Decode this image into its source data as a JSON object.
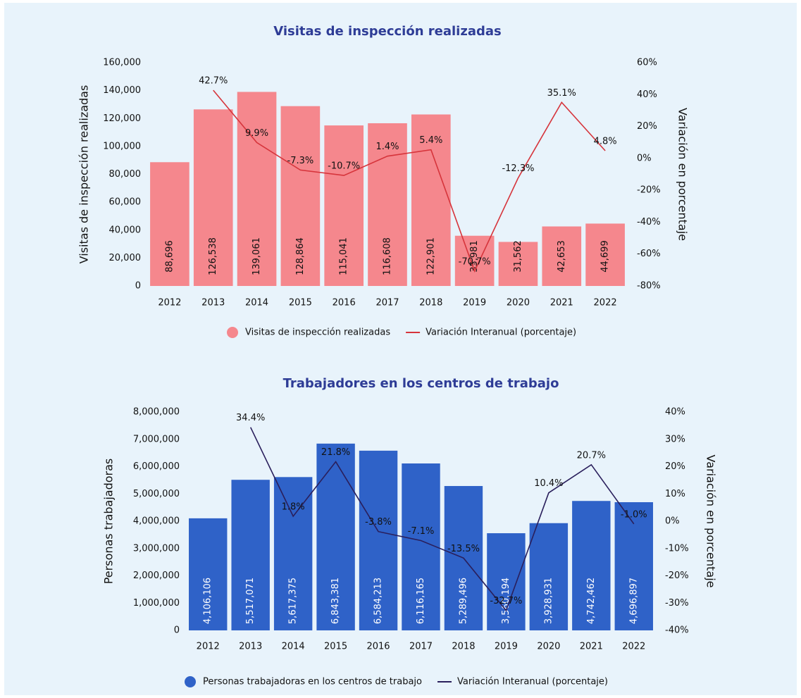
{
  "chart_data": [
    {
      "type": "bar",
      "title": "Visitas de inspección realizadas",
      "y_label": "Visitas de inspección realizadas",
      "y2_label": "Variación en porcentaje",
      "categories": [
        "2012",
        "2013",
        "2014",
        "2015",
        "2016",
        "2017",
        "2018",
        "2019",
        "2020",
        "2021",
        "2022"
      ],
      "series": [
        {
          "name": "Visitas de inspección realizadas",
          "type": "bar",
          "color": "#f5878d",
          "values": [
            88696,
            126538,
            139061,
            128864,
            115041,
            116608,
            122901,
            35981,
            31562,
            42653,
            44699
          ],
          "value_labels": [
            "88,696",
            "126,538",
            "139,061",
            "128,864",
            "115,041",
            "116,608",
            "122,901",
            "35,981",
            "31,562",
            "42,653",
            "44,699"
          ]
        },
        {
          "name": "Variación Interanual (porcentaje)",
          "type": "line",
          "axis": "y2",
          "color": "#d6343b",
          "values": [
            null,
            42.7,
            9.9,
            -7.3,
            -10.7,
            1.4,
            5.4,
            -70.7,
            -12.3,
            35.1,
            4.8
          ],
          "value_labels": [
            null,
            "42.7%",
            "9.9%",
            "-7.3%",
            "-10.7%",
            "1.4%",
            "5.4%",
            "-70.7%",
            "-12.3%",
            "35.1%",
            "4.8%"
          ]
        }
      ],
      "ylim": [
        0,
        160000
      ],
      "yticks": [
        0,
        {
          "value": 20000,
          "label": "20,000"
        },
        {
          "value": 40000,
          "label": "40,000"
        },
        {
          "value": 60000,
          "label": "60,000"
        },
        {
          "value": 80000,
          "label": "80,000"
        },
        {
          "value": 100000,
          "label": "100,000"
        },
        {
          "value": 120000,
          "label": "120,000"
        },
        {
          "value": 140000,
          "label": "140,000"
        },
        {
          "value": 160000,
          "label": "160,000"
        }
      ],
      "y2lim": [
        -80,
        60
      ],
      "y2ticks": [
        {
          "value": -80,
          "label": "-80%"
        },
        {
          "value": -60,
          "label": "-60%"
        },
        {
          "value": -40,
          "label": "-40%"
        },
        {
          "value": -20,
          "label": "-20%"
        },
        {
          "value": 0,
          "label": "0%"
        },
        {
          "value": 20,
          "label": "20%"
        },
        {
          "value": 40,
          "label": "40%"
        },
        {
          "value": 60,
          "label": "60%"
        }
      ]
    },
    {
      "type": "bar",
      "title": "Trabajadores en los centros de trabajo",
      "y_label": "Personas trabajadoras",
      "y2_label": "Variación en porcentaje",
      "categories": [
        "2012",
        "2013",
        "2014",
        "2015",
        "2016",
        "2017",
        "2018",
        "2019",
        "2020",
        "2021",
        "2022"
      ],
      "series": [
        {
          "name": "Personas trabajadoras en los centros de trabajo",
          "type": "bar",
          "color": "#2f62c8",
          "values": [
            4106106,
            5517071,
            5617375,
            6843381,
            6584213,
            6116165,
            5289496,
            3560194,
            3928931,
            4742462,
            4696897
          ],
          "value_labels": [
            "4,106,106",
            "5,517,071",
            "5,617,375",
            "6,843,381",
            "6,584,213",
            "6,116,165",
            "5,289,496",
            "3,560,194",
            "3,928,931",
            "4,742,462",
            "4,696,897"
          ]
        },
        {
          "name": "Variación Interanual (porcentaje)",
          "type": "line",
          "axis": "y2",
          "color": "#2a1f5c",
          "values": [
            null,
            34.4,
            1.8,
            21.8,
            -3.8,
            -7.1,
            -13.5,
            -32.7,
            10.4,
            20.7,
            -1.0
          ],
          "value_labels": [
            null,
            "34.4%",
            "1.8%",
            "21.8%",
            "-3.8%",
            "-7.1%",
            "-13.5%",
            "-32.7%",
            "10.4%",
            "20.7%",
            "-1.0%"
          ]
        }
      ],
      "ylim": [
        0,
        8000000
      ],
      "yticks": [
        0,
        {
          "value": 1000000,
          "label": "1,000,000"
        },
        {
          "value": 2000000,
          "label": "2,000,000"
        },
        {
          "value": 3000000,
          "label": "3,000,000"
        },
        {
          "value": 4000000,
          "label": "4,000,000"
        },
        {
          "value": 5000000,
          "label": "5,000,000"
        },
        {
          "value": 6000000,
          "label": "6,000,000"
        },
        {
          "value": 7000000,
          "label": "7,000,000"
        },
        {
          "value": 8000000,
          "label": "8,000,000"
        }
      ],
      "y2lim": [
        -40,
        40
      ],
      "y2ticks": [
        {
          "value": -40,
          "label": "-40%"
        },
        {
          "value": -30,
          "label": "-30%"
        },
        {
          "value": -20,
          "label": "-20%"
        },
        {
          "value": -10,
          "label": "-10%"
        },
        {
          "value": 0,
          "label": "0%"
        },
        {
          "value": 10,
          "label": "10%"
        },
        {
          "value": 20,
          "label": "20%"
        },
        {
          "value": 30,
          "label": "30%"
        },
        {
          "value": 40,
          "label": "40%"
        }
      ]
    }
  ]
}
